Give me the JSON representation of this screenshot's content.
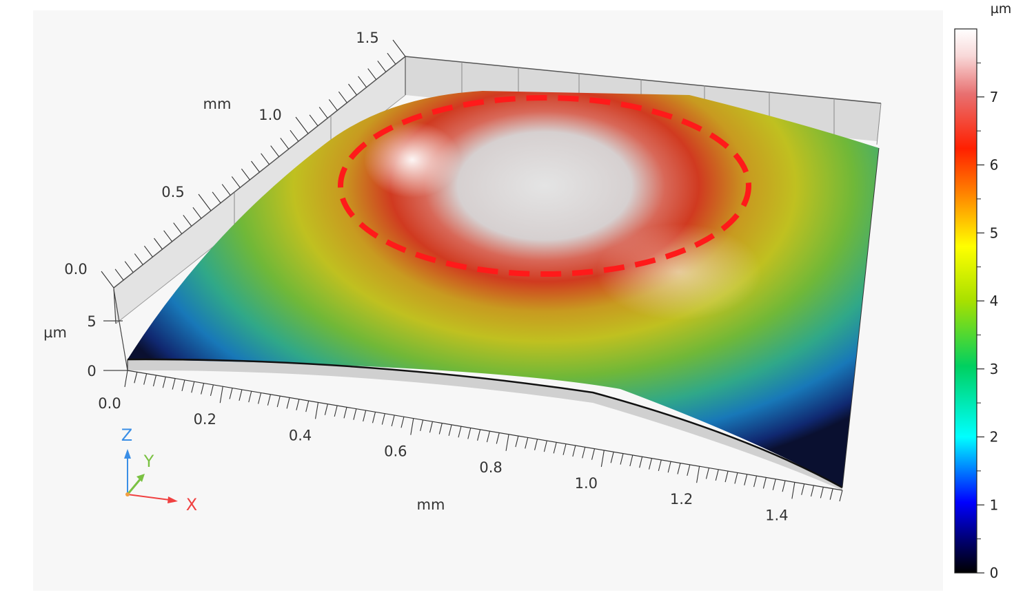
{
  "chart_data": {
    "type": "surface3d",
    "x_axis": {
      "label": "mm",
      "ticks": [
        "0.0",
        "0.2",
        "0.4",
        "0.6",
        "0.8",
        "1.0",
        "1.2",
        "1.4"
      ],
      "range": [
        0,
        1.5
      ]
    },
    "y_axis": {
      "label": "mm",
      "ticks": [
        "0.0",
        "0.5",
        "1.0",
        "1.5"
      ],
      "range": [
        0,
        1.5
      ]
    },
    "z_axis": {
      "label": "µm",
      "ticks": [
        "0",
        "5"
      ],
      "range": [
        0,
        8
      ]
    },
    "colorbar": {
      "unit": "µm",
      "ticks": [
        "0",
        "1",
        "2",
        "3",
        "4",
        "5",
        "6",
        "7"
      ],
      "range": [
        0,
        8
      ]
    },
    "annotation": {
      "shape": "dashed-ellipse",
      "color": "#ff0000",
      "highlights": "dome top region"
    },
    "axis_triad": {
      "x": "X",
      "y": "Y",
      "z": "Z"
    }
  },
  "colors": {
    "x_axis": "#f04040",
    "y_axis": "#7ac142",
    "z_axis": "#3a8ee6"
  }
}
